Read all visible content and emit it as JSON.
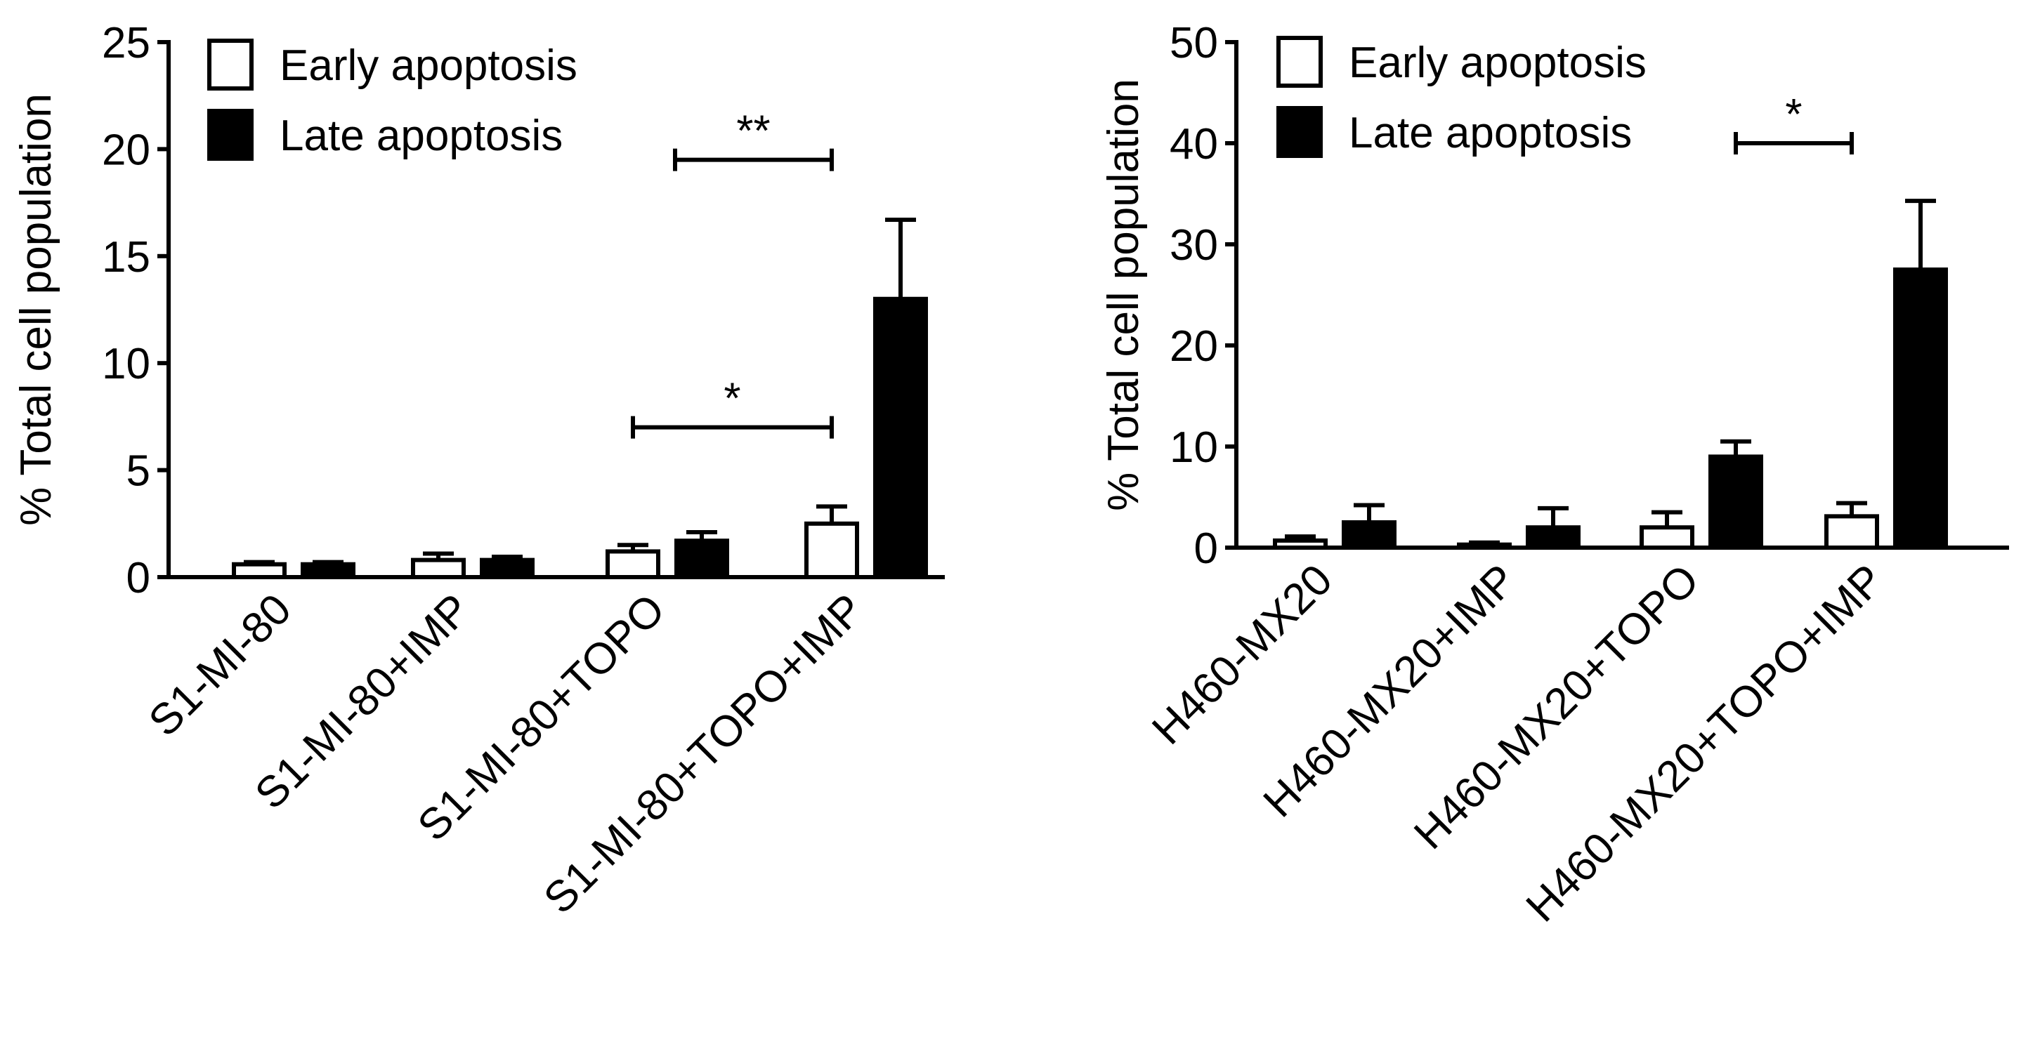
{
  "chart_data": [
    {
      "type": "bar",
      "ylabel": "% Total cell population",
      "ylim": [
        0,
        25
      ],
      "yticks": [
        "0",
        "5",
        "10",
        "15",
        "20",
        "25"
      ],
      "categories": [
        "S1-MI-80",
        "S1-MI-80+IMP",
        "S1-MI-80+TOPO",
        "S1-MI-80+TOPO+IMP"
      ],
      "legend": {
        "placement": "top-left",
        "entries": [
          "Early apoptosis",
          "Late apoptosis"
        ]
      },
      "series": [
        {
          "name": "Early apoptosis",
          "color": "#ffffff",
          "values": [
            0.6,
            0.8,
            1.2,
            2.5
          ],
          "errors": [
            0.1,
            0.3,
            0.3,
            0.8
          ]
        },
        {
          "name": "Late apoptosis",
          "color": "#000000",
          "values": [
            0.6,
            0.8,
            1.7,
            13.0
          ],
          "errors": [
            0.1,
            0.15,
            0.4,
            3.7
          ]
        }
      ],
      "significance": [
        {
          "label": "*",
          "from": "S1-MI-80+TOPO",
          "to": "S1-MI-80+TOPO+IMP",
          "y": 7
        },
        {
          "label": "**",
          "from": "S1-MI-80+TOPO",
          "to": "S1-MI-80+TOPO+IMP",
          "y": 19.5
        }
      ]
    },
    {
      "type": "bar",
      "ylabel": "% Total cell population",
      "ylim": [
        0,
        50
      ],
      "yticks": [
        "0",
        "10",
        "20",
        "30",
        "40",
        "50"
      ],
      "categories": [
        "H460-MX20",
        "H460-MX20+IMP",
        "H460-MX20+TOPO",
        "H460-MX20+TOPO+IMP"
      ],
      "legend": {
        "placement": "top-left",
        "entries": [
          "Early apoptosis",
          "Late apoptosis"
        ]
      },
      "series": [
        {
          "name": "Early apoptosis",
          "color": "#ffffff",
          "values": [
            0.7,
            0.3,
            2.0,
            3.1
          ],
          "errors": [
            0.4,
            0.2,
            1.5,
            1.3
          ]
        },
        {
          "name": "Late apoptosis",
          "color": "#000000",
          "values": [
            2.5,
            2.0,
            9.0,
            27.5
          ],
          "errors": [
            1.7,
            1.9,
            1.5,
            6.8
          ]
        }
      ],
      "significance": [
        {
          "label": "*",
          "from": "H460-MX20+TOPO",
          "to": "H460-MX20+TOPO+IMP",
          "y": 40
        }
      ]
    }
  ]
}
